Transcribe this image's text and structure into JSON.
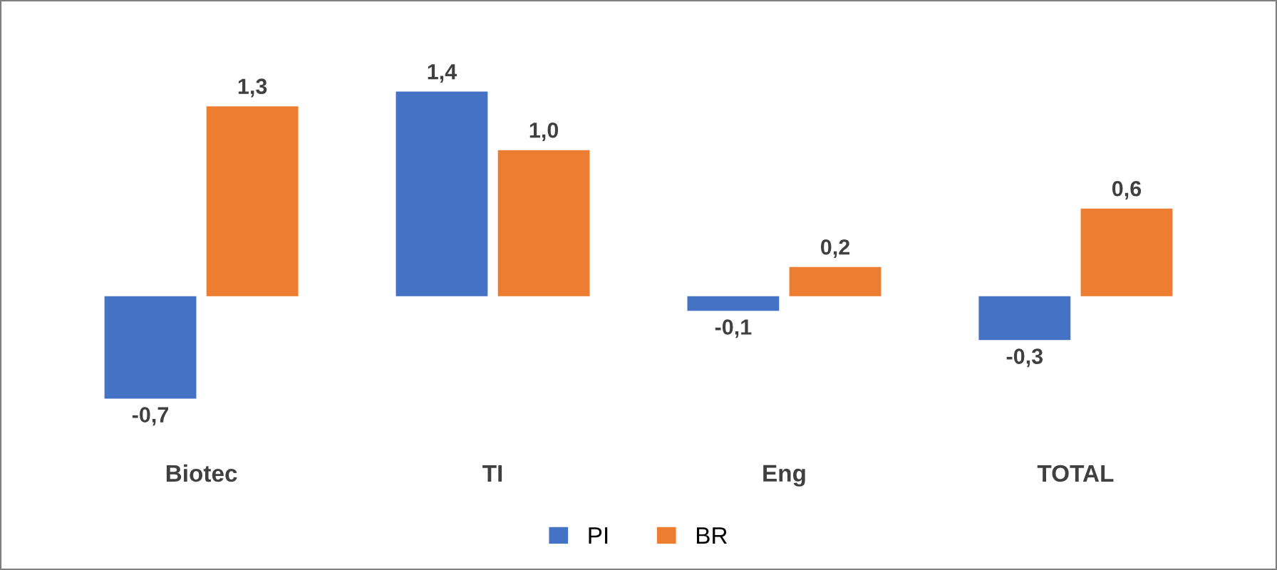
{
  "chart_data": {
    "type": "bar",
    "categories": [
      "Biotec",
      "TI",
      "Eng",
      "TOTAL"
    ],
    "series": [
      {
        "name": "PI",
        "color": "#4472c4",
        "values": [
          -0.7,
          1.4,
          -0.1,
          -0.3
        ],
        "value_labels": [
          "-0,7",
          "1,4",
          "-0,1",
          "-0,3"
        ]
      },
      {
        "name": "BR",
        "color": "#ed7d31",
        "values": [
          1.3,
          1.0,
          0.2,
          0.6
        ],
        "value_labels": [
          "1,3",
          "1,0",
          "0,2",
          "0,6"
        ]
      }
    ],
    "legend": "bottom",
    "grid": false
  }
}
